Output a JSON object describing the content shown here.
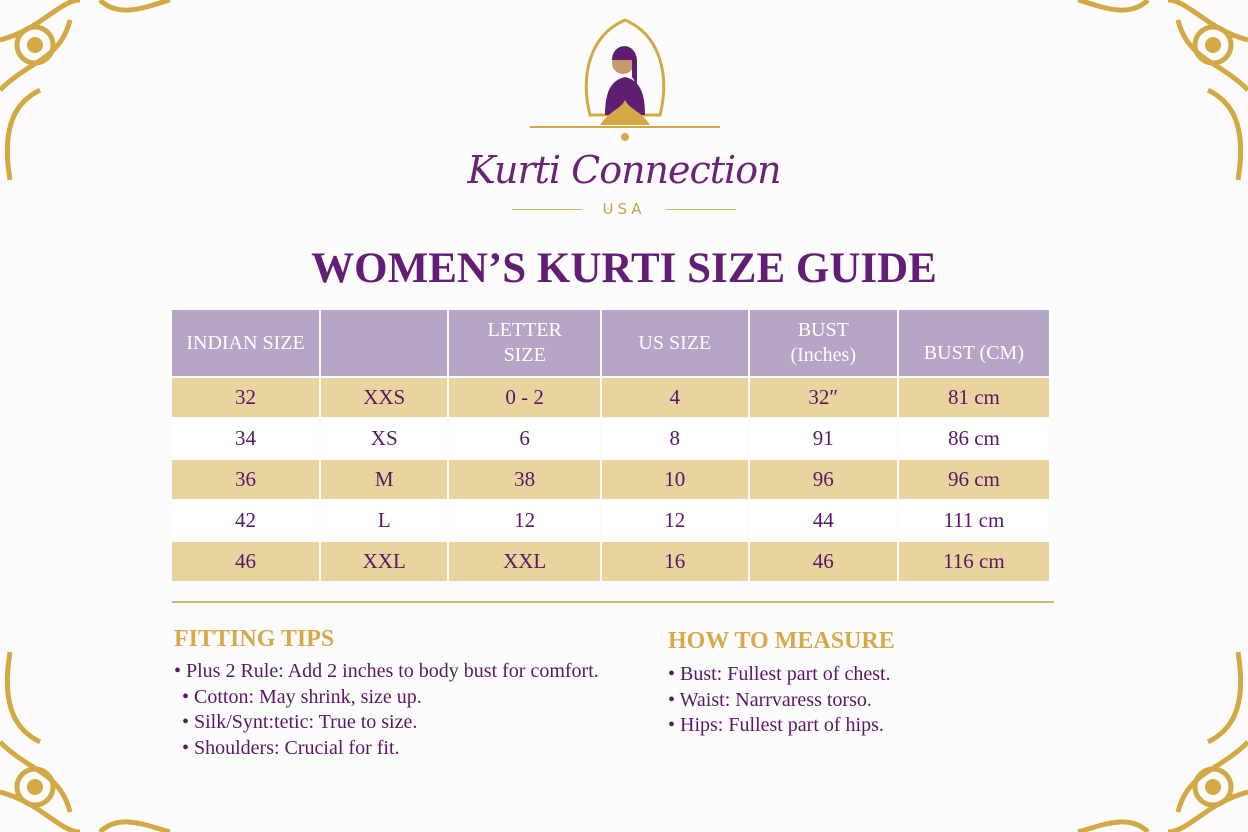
{
  "brand": {
    "name": "Kurti Connection",
    "sub": "USA"
  },
  "title": "WOMEN’S KURTI SIZE GUIDE",
  "table": {
    "headers": [
      "INDIAN SIZE",
      "",
      "LETTER SIZE",
      "US SIZE",
      "BUST (Inches)",
      "BUST (CM)"
    ],
    "rows": [
      [
        "32",
        "XXS",
        "0 - 2",
        "4",
        "32″",
        "81 cm"
      ],
      [
        "34",
        "XS",
        "6",
        "8",
        "91",
        "86 cm"
      ],
      [
        "36",
        "M",
        "38",
        "10",
        "96",
        "96 cm"
      ],
      [
        "42",
        "L",
        "12",
        "12",
        "44",
        "111 cm"
      ],
      [
        "46",
        "XXL",
        "XXL",
        "16",
        "46",
        "116 cm"
      ]
    ]
  },
  "fitting": {
    "title": "FITTING TIPS",
    "items": [
      "• Plus 2 Rule: Add 2 inches to body bust for comfort.",
      "• Cotton: May shrink, size up.",
      "• Silk/Synt:tetic: True to size.",
      "• Shoulders: Crucial for fit."
    ]
  },
  "measure": {
    "title": "HOW TO MEASURE",
    "items": [
      "• Bust: Fullest part of chest.",
      "• Waist: Narrvaress torso.",
      "• Hips: Fullest part of hips."
    ]
  },
  "colors": {
    "purple": "#621d74",
    "gold": "#d7a94a",
    "header": "#b7a5c7",
    "band": "#e9d39f"
  }
}
